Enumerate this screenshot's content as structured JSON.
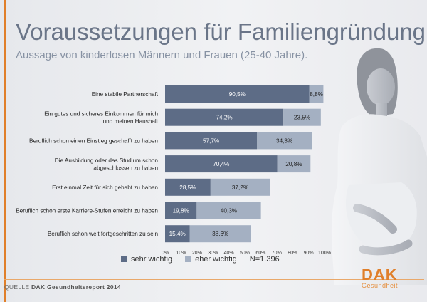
{
  "header": {
    "title": "Voraussetzungen für Familiengründung.",
    "subtitle": "Aussage von kinderlosen Männern und Frauen (25-40 Jahre)."
  },
  "colors": {
    "sehr_wichtig": "#5d6c86",
    "eher_wichtig": "#a4b0c2",
    "accent": "#e07f2a"
  },
  "chart_data": {
    "type": "bar",
    "orientation": "horizontal",
    "stacked": true,
    "categories": [
      [
        "Eine stabile Partnerschaft"
      ],
      [
        "Ein gutes und sicheres Einkommen für mich",
        "und meinen Haushalt"
      ],
      [
        "Beruflich schon einen Einstieg geschafft zu haben"
      ],
      [
        "Die Ausbildung oder das Studium schon",
        "abgeschlossen zu haben"
      ],
      [
        "Erst einmal Zeit für sich gehabt zu haben"
      ],
      [
        "Beruflich schon erste Karriere-Stufen erreicht zu haben"
      ],
      [
        "Beruflich schon weit fortgeschritten zu sein"
      ]
    ],
    "series": [
      {
        "name": "sehr wichtig",
        "values": [
          90.5,
          74.2,
          57.7,
          70.4,
          28.5,
          19.8,
          15.4
        ],
        "labels": [
          "90,5%",
          "74,2%",
          "57,7%",
          "70,4%",
          "28,5%",
          "19,8%",
          "15,4%"
        ]
      },
      {
        "name": "eher wichtig",
        "values": [
          8.8,
          23.5,
          34.3,
          20.8,
          37.2,
          40.3,
          38.6
        ],
        "labels": [
          "8,8%",
          "23,5%",
          "34,3%",
          "20,8%",
          "37,2%",
          "40,3%",
          "38,6%"
        ]
      }
    ],
    "xlim": [
      0,
      100
    ],
    "xticks": [
      "0%",
      "10%",
      "20%",
      "30%",
      "40%",
      "50%",
      "60%",
      "70%",
      "80%",
      "90%",
      "100%"
    ],
    "grid": false
  },
  "legend": {
    "sehr": "sehr wichtig",
    "eher": "eher wichtig",
    "n": "N=1.396"
  },
  "footer": {
    "source_prefix": "QUELLE",
    "source_name": "DAK Gesundheitsreport 2014"
  },
  "logo": {
    "name": "DAK",
    "tagline": "Gesundheit"
  }
}
